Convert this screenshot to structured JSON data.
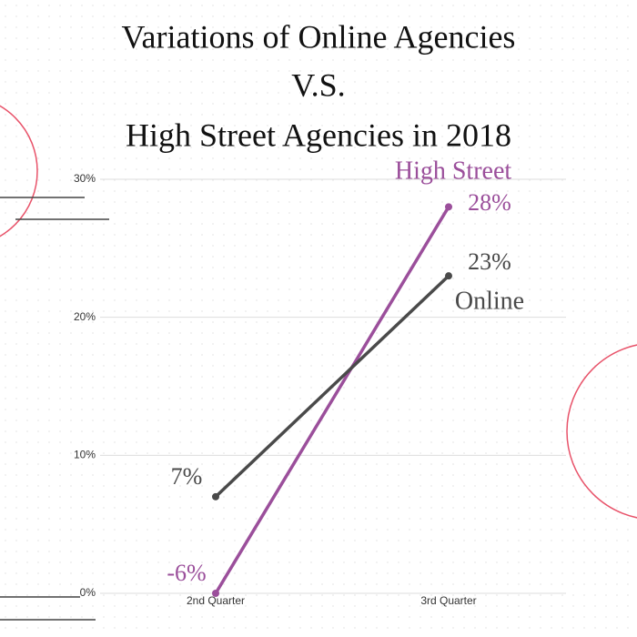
{
  "chart_data": {
    "type": "line",
    "title": [
      "Variations of Online Agencies",
      "V.S.",
      "High Street Agencies in 2018"
    ],
    "categories": [
      "2nd Quarter",
      "3rd Quarter"
    ],
    "series": [
      {
        "name": "High Street",
        "color": "#9b4f9b",
        "values": [
          0,
          28
        ],
        "value_labels": [
          null,
          "28%"
        ]
      },
      {
        "name": "Online",
        "color": "#4a4a4a",
        "values": [
          7,
          23
        ],
        "value_labels": [
          "7%",
          "23%"
        ]
      }
    ],
    "annotations": [
      "-6%"
    ],
    "ylim": [
      0,
      30
    ],
    "yticks": [
      {
        "value": 0,
        "label": "0%"
      },
      {
        "value": 10,
        "label": "10%"
      },
      {
        "value": 20,
        "label": "20%"
      },
      {
        "value": 30,
        "label": "30%"
      }
    ],
    "grid": true
  }
}
